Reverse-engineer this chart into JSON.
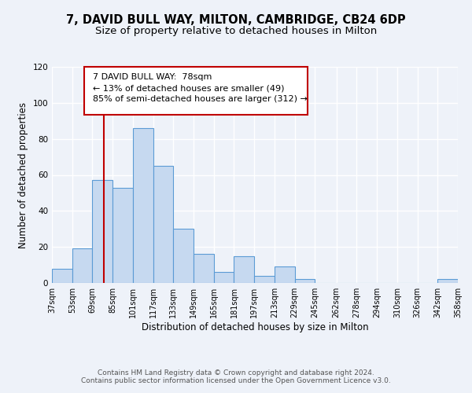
{
  "title": "7, DAVID BULL WAY, MILTON, CAMBRIDGE, CB24 6DP",
  "subtitle": "Size of property relative to detached houses in Milton",
  "xlabel": "Distribution of detached houses by size in Milton",
  "ylabel": "Number of detached properties",
  "bar_left_edges": [
    37,
    53,
    69,
    85,
    101,
    117,
    133,
    149,
    165,
    181,
    197,
    213,
    229,
    245,
    262,
    278,
    294,
    310,
    326,
    342
  ],
  "bar_heights": [
    8,
    19,
    57,
    53,
    86,
    65,
    30,
    16,
    6,
    15,
    4,
    9,
    2,
    0,
    0,
    0,
    0,
    0,
    0,
    2
  ],
  "bin_width": 16,
  "bar_color": "#c6d9f0",
  "bar_edge_color": "#5b9bd5",
  "tick_labels": [
    "37sqm",
    "53sqm",
    "69sqm",
    "85sqm",
    "101sqm",
    "117sqm",
    "133sqm",
    "149sqm",
    "165sqm",
    "181sqm",
    "197sqm",
    "213sqm",
    "229sqm",
    "245sqm",
    "262sqm",
    "278sqm",
    "294sqm",
    "310sqm",
    "326sqm",
    "342sqm",
    "358sqm"
  ],
  "ylim": [
    0,
    120
  ],
  "yticks": [
    0,
    20,
    40,
    60,
    80,
    100,
    120
  ],
  "property_line_x": 78,
  "property_line_color": "#c00000",
  "annotation_line1": "7 DAVID BULL WAY:  78sqm",
  "annotation_line2": "← 13% of detached houses are smaller (49)",
  "annotation_line3": "85% of semi-detached houses are larger (312) →",
  "footer_line1": "Contains HM Land Registry data © Crown copyright and database right 2024.",
  "footer_line2": "Contains public sector information licensed under the Open Government Licence v3.0.",
  "background_color": "#eef2f9",
  "grid_color": "#ffffff",
  "title_fontsize": 10.5,
  "subtitle_fontsize": 9.5,
  "annotation_fontsize": 8,
  "tick_fontsize": 7,
  "ylabel_fontsize": 8.5,
  "xlabel_fontsize": 8.5,
  "footer_fontsize": 6.5
}
